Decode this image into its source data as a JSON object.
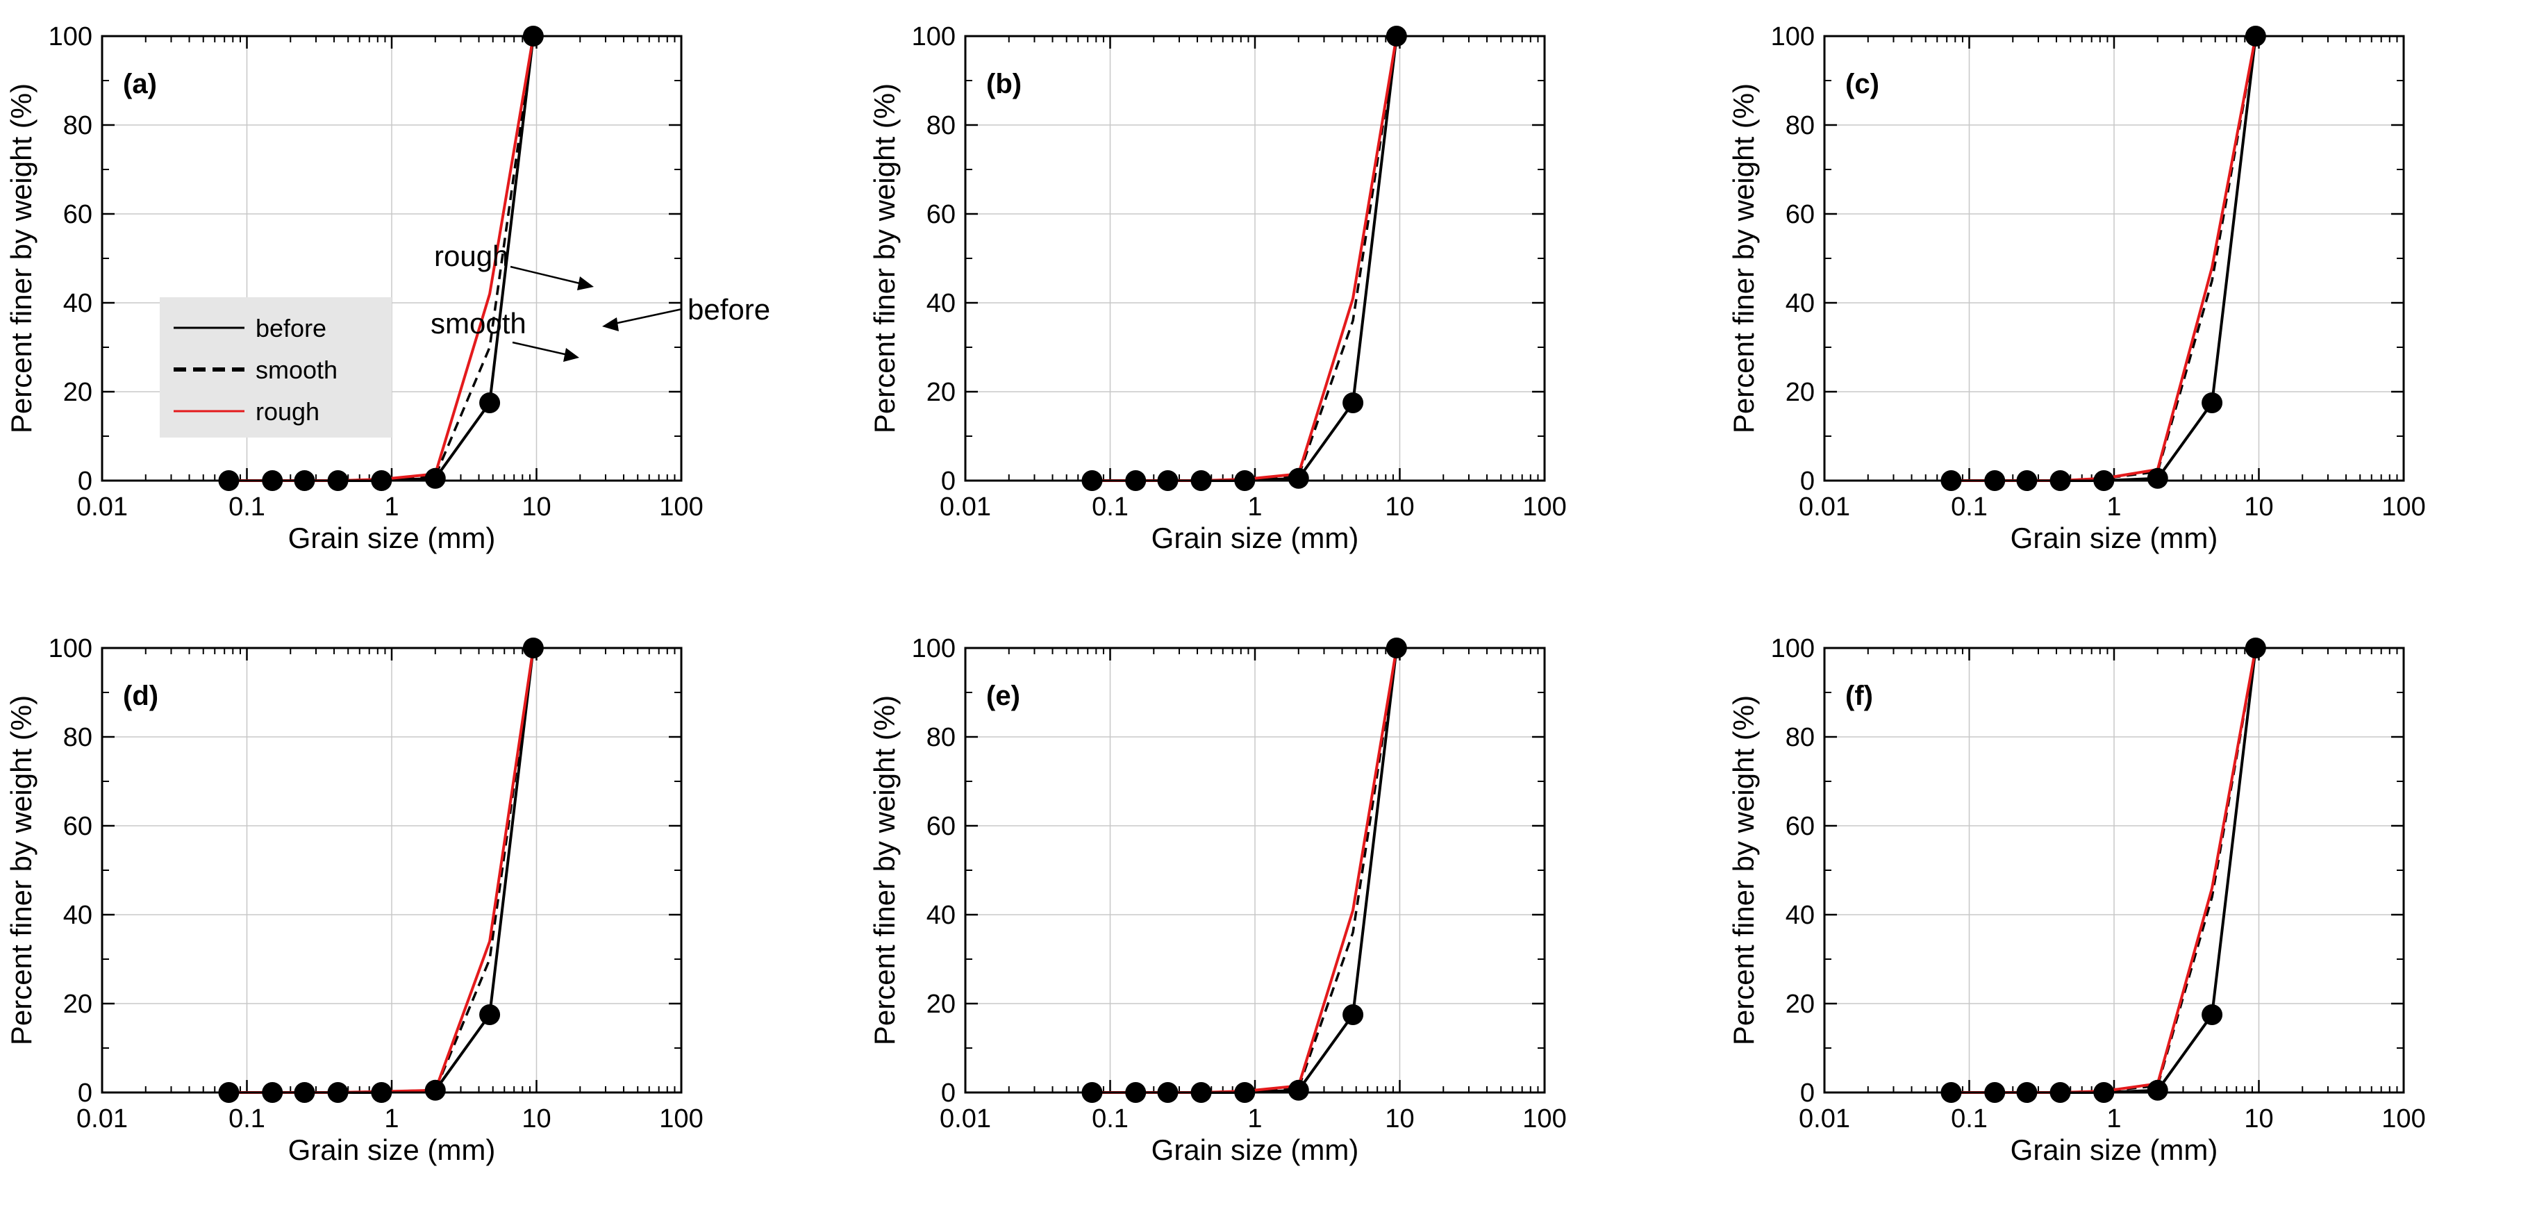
{
  "legend": {
    "entries": [
      {
        "label": "before",
        "color": "#000000",
        "style": "solid"
      },
      {
        "label": "smooth",
        "color": "#000000",
        "style": "dashed"
      },
      {
        "label": "rough",
        "color": "#e41a1c",
        "style": "solid"
      }
    ]
  },
  "annotations": [
    {
      "text": "rough",
      "panel": "a"
    },
    {
      "text": "smooth",
      "panel": "a"
    },
    {
      "text": "before",
      "panel": "a"
    }
  ],
  "chart_data": [
    {
      "type": "line",
      "panel_label": "(a)",
      "xlabel": "Grain size (mm)",
      "ylabel": "Percent finer by weight (%)",
      "xscale": "log",
      "xlim": [
        0.01,
        100
      ],
      "ylim": [
        0,
        100
      ],
      "xticks": [
        "0.01",
        "0.1",
        "1",
        "10",
        "100"
      ],
      "yticks": [
        "0",
        "20",
        "40",
        "60",
        "80",
        "100"
      ],
      "grid": true,
      "series": [
        {
          "name": "before",
          "color": "#000000",
          "dash": "solid",
          "markers": true,
          "x": [
            0.075,
            0.15,
            0.25,
            0.425,
            0.85,
            2.0,
            4.75,
            9.5
          ],
          "y": [
            0,
            0,
            0,
            0,
            0,
            0.5,
            17.5,
            100
          ]
        },
        {
          "name": "smooth",
          "color": "#000000",
          "dash": "dashed",
          "markers": false,
          "x": [
            0.075,
            0.15,
            0.25,
            0.425,
            0.85,
            2.0,
            4.75,
            9.5
          ],
          "y": [
            0,
            0,
            0,
            0,
            0.3,
            1.0,
            30,
            100
          ]
        },
        {
          "name": "rough",
          "color": "#e41a1c",
          "dash": "solid",
          "markers": false,
          "x": [
            0.075,
            0.15,
            0.25,
            0.425,
            0.85,
            2.0,
            4.75,
            9.5
          ],
          "y": [
            0,
            0,
            0,
            0,
            0.3,
            1.5,
            42,
            100
          ]
        }
      ]
    },
    {
      "type": "line",
      "panel_label": "(b)",
      "xlabel": "Grain size (mm)",
      "ylabel": "Percent finer by weight (%)",
      "xscale": "log",
      "xlim": [
        0.01,
        100
      ],
      "ylim": [
        0,
        100
      ],
      "xticks": [
        "0.01",
        "0.1",
        "1",
        "10",
        "100"
      ],
      "yticks": [
        "0",
        "20",
        "40",
        "60",
        "80",
        "100"
      ],
      "grid": true,
      "series": [
        {
          "name": "before",
          "color": "#000000",
          "dash": "solid",
          "markers": true,
          "x": [
            0.075,
            0.15,
            0.25,
            0.425,
            0.85,
            2.0,
            4.75,
            9.5
          ],
          "y": [
            0,
            0,
            0,
            0,
            0,
            0.5,
            17.5,
            100
          ]
        },
        {
          "name": "smooth",
          "color": "#000000",
          "dash": "dashed",
          "markers": false,
          "x": [
            0.075,
            0.15,
            0.25,
            0.425,
            0.85,
            2.0,
            4.75,
            9.5
          ],
          "y": [
            0,
            0,
            0,
            0,
            0.3,
            1.0,
            36,
            100
          ]
        },
        {
          "name": "rough",
          "color": "#e41a1c",
          "dash": "solid",
          "markers": false,
          "x": [
            0.075,
            0.15,
            0.25,
            0.425,
            0.85,
            2.0,
            4.75,
            9.5
          ],
          "y": [
            0,
            0,
            0,
            0,
            0.3,
            1.5,
            41,
            100
          ]
        }
      ]
    },
    {
      "type": "line",
      "panel_label": "(c)",
      "xlabel": "Grain size (mm)",
      "ylabel": "Percent finer by weight (%)",
      "xscale": "log",
      "xlim": [
        0.01,
        100
      ],
      "ylim": [
        0,
        100
      ],
      "xticks": [
        "0.01",
        "0.1",
        "1",
        "10",
        "100"
      ],
      "yticks": [
        "0",
        "20",
        "40",
        "60",
        "80",
        "100"
      ],
      "grid": true,
      "series": [
        {
          "name": "before",
          "color": "#000000",
          "dash": "solid",
          "markers": true,
          "x": [
            0.075,
            0.15,
            0.25,
            0.425,
            0.85,
            2.0,
            4.75,
            9.5
          ],
          "y": [
            0,
            0,
            0,
            0,
            0,
            0.5,
            17.5,
            100
          ]
        },
        {
          "name": "smooth",
          "color": "#000000",
          "dash": "dashed",
          "markers": false,
          "x": [
            0.075,
            0.15,
            0.25,
            0.425,
            0.85,
            2.0,
            4.75,
            9.5
          ],
          "y": [
            0,
            0,
            0,
            0,
            0.5,
            2.0,
            45,
            100
          ]
        },
        {
          "name": "rough",
          "color": "#e41a1c",
          "dash": "solid",
          "markers": false,
          "x": [
            0.075,
            0.15,
            0.25,
            0.425,
            0.85,
            2.0,
            4.75,
            9.5
          ],
          "y": [
            0,
            0,
            0,
            0,
            0.5,
            2.5,
            48,
            100
          ]
        }
      ]
    },
    {
      "type": "line",
      "panel_label": "(d)",
      "xlabel": "Grain size (mm)",
      "ylabel": "Percent finer by weight (%)",
      "xscale": "log",
      "xlim": [
        0.01,
        100
      ],
      "ylim": [
        0,
        100
      ],
      "xticks": [
        "0.01",
        "0.1",
        "1",
        "10",
        "100"
      ],
      "yticks": [
        "0",
        "20",
        "40",
        "60",
        "80",
        "100"
      ],
      "grid": true,
      "series": [
        {
          "name": "before",
          "color": "#000000",
          "dash": "solid",
          "markers": true,
          "x": [
            0.075,
            0.15,
            0.25,
            0.425,
            0.85,
            2.0,
            4.75,
            9.5
          ],
          "y": [
            0,
            0,
            0,
            0,
            0,
            0.5,
            17.5,
            100
          ]
        },
        {
          "name": "smooth",
          "color": "#000000",
          "dash": "dashed",
          "markers": false,
          "x": [
            0.075,
            0.15,
            0.25,
            0.425,
            0.85,
            2.0,
            4.75,
            9.5
          ],
          "y": [
            0,
            0,
            0,
            0,
            0.2,
            0.5,
            30,
            100
          ]
        },
        {
          "name": "rough",
          "color": "#e41a1c",
          "dash": "solid",
          "markers": false,
          "x": [
            0.075,
            0.15,
            0.25,
            0.425,
            0.85,
            2.0,
            4.75,
            9.5
          ],
          "y": [
            0,
            0,
            0,
            0,
            0.2,
            0.5,
            34,
            100
          ]
        }
      ]
    },
    {
      "type": "line",
      "panel_label": "(e)",
      "xlabel": "Grain size (mm)",
      "ylabel": "Percent finer by weight (%)",
      "xscale": "log",
      "xlim": [
        0.01,
        100
      ],
      "ylim": [
        0,
        100
      ],
      "xticks": [
        "0.01",
        "0.1",
        "1",
        "10",
        "100"
      ],
      "yticks": [
        "0",
        "20",
        "40",
        "60",
        "80",
        "100"
      ],
      "grid": true,
      "series": [
        {
          "name": "before",
          "color": "#000000",
          "dash": "solid",
          "markers": true,
          "x": [
            0.075,
            0.15,
            0.25,
            0.425,
            0.85,
            2.0,
            4.75,
            9.5
          ],
          "y": [
            0,
            0,
            0,
            0,
            0,
            0.5,
            17.5,
            100
          ]
        },
        {
          "name": "smooth",
          "color": "#000000",
          "dash": "dashed",
          "markers": false,
          "x": [
            0.075,
            0.15,
            0.25,
            0.425,
            0.85,
            2.0,
            4.75,
            9.5
          ],
          "y": [
            0,
            0,
            0,
            0,
            0.3,
            1.0,
            36,
            100
          ]
        },
        {
          "name": "rough",
          "color": "#e41a1c",
          "dash": "solid",
          "markers": false,
          "x": [
            0.075,
            0.15,
            0.25,
            0.425,
            0.85,
            2.0,
            4.75,
            9.5
          ],
          "y": [
            0,
            0,
            0,
            0,
            0.3,
            1.5,
            41,
            100
          ]
        }
      ]
    },
    {
      "type": "line",
      "panel_label": "(f)",
      "xlabel": "Grain size (mm)",
      "ylabel": "Percent finer by weight (%)",
      "xscale": "log",
      "xlim": [
        0.01,
        100
      ],
      "ylim": [
        0,
        100
      ],
      "xticks": [
        "0.01",
        "0.1",
        "1",
        "10",
        "100"
      ],
      "yticks": [
        "0",
        "20",
        "40",
        "60",
        "80",
        "100"
      ],
      "grid": true,
      "series": [
        {
          "name": "before",
          "color": "#000000",
          "dash": "solid",
          "markers": true,
          "x": [
            0.075,
            0.15,
            0.25,
            0.425,
            0.85,
            2.0,
            4.75,
            9.5
          ],
          "y": [
            0,
            0,
            0,
            0,
            0,
            0.5,
            17.5,
            100
          ]
        },
        {
          "name": "smooth",
          "color": "#000000",
          "dash": "dashed",
          "markers": false,
          "x": [
            0.075,
            0.15,
            0.25,
            0.425,
            0.85,
            2.0,
            4.75,
            9.5
          ],
          "y": [
            0,
            0,
            0,
            0,
            0.3,
            1.5,
            44,
            100
          ]
        },
        {
          "name": "rough",
          "color": "#e41a1c",
          "dash": "solid",
          "markers": false,
          "x": [
            0.075,
            0.15,
            0.25,
            0.425,
            0.85,
            2.0,
            4.75,
            9.5
          ],
          "y": [
            0,
            0,
            0,
            0,
            0.3,
            2.0,
            46,
            100
          ]
        }
      ]
    }
  ]
}
